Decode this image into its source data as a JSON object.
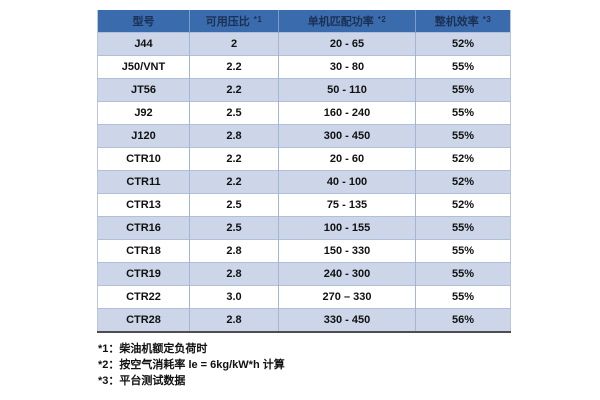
{
  "table": {
    "columns": [
      {
        "label": "型号",
        "note": ""
      },
      {
        "label": "可用压比",
        "note": "*1"
      },
      {
        "label": "单机匹配功率",
        "note": "*2"
      },
      {
        "label": "整机效率",
        "note": "*3"
      }
    ],
    "rows": [
      [
        "J44",
        "2",
        "20 - 65",
        "52%"
      ],
      [
        "J50/VNT",
        "2.2",
        "30 - 80",
        "55%"
      ],
      [
        "JT56",
        "2.2",
        "50 - 110",
        "55%"
      ],
      [
        "J92",
        "2.5",
        "160 - 240",
        "55%"
      ],
      [
        "J120",
        "2.8",
        "300 - 450",
        "55%"
      ],
      [
        "CTR10",
        "2.2",
        "20 - 60",
        "52%"
      ],
      [
        "CTR11",
        "2.2",
        "40 - 100",
        "52%"
      ],
      [
        "CTR13",
        "2.5",
        "75 - 135",
        "52%"
      ],
      [
        "CTR16",
        "2.5",
        "100 - 155",
        "55%"
      ],
      [
        "CTR18",
        "2.8",
        "150 - 330",
        "55%"
      ],
      [
        "CTR19",
        "2.8",
        "240 - 300",
        "55%"
      ],
      [
        "CTR22",
        "3.0",
        "270 – 330",
        "55%"
      ],
      [
        "CTR28",
        "2.8",
        "330 - 450",
        "56%"
      ]
    ]
  },
  "footnotes": [
    "*1：柴油机额定负荷时",
    "*2：按空气消耗率  le = 6kg/kW*h  计算",
    "*3：平台测试数据"
  ],
  "colors": {
    "header_bg": "#3a6bac",
    "header_text": "#1b3055",
    "band_row_bg": "#ccd6e8",
    "plain_row_bg": "#ffffff",
    "grid_line": "#a3b7d3",
    "bottom_border": "#4d4d4d"
  }
}
